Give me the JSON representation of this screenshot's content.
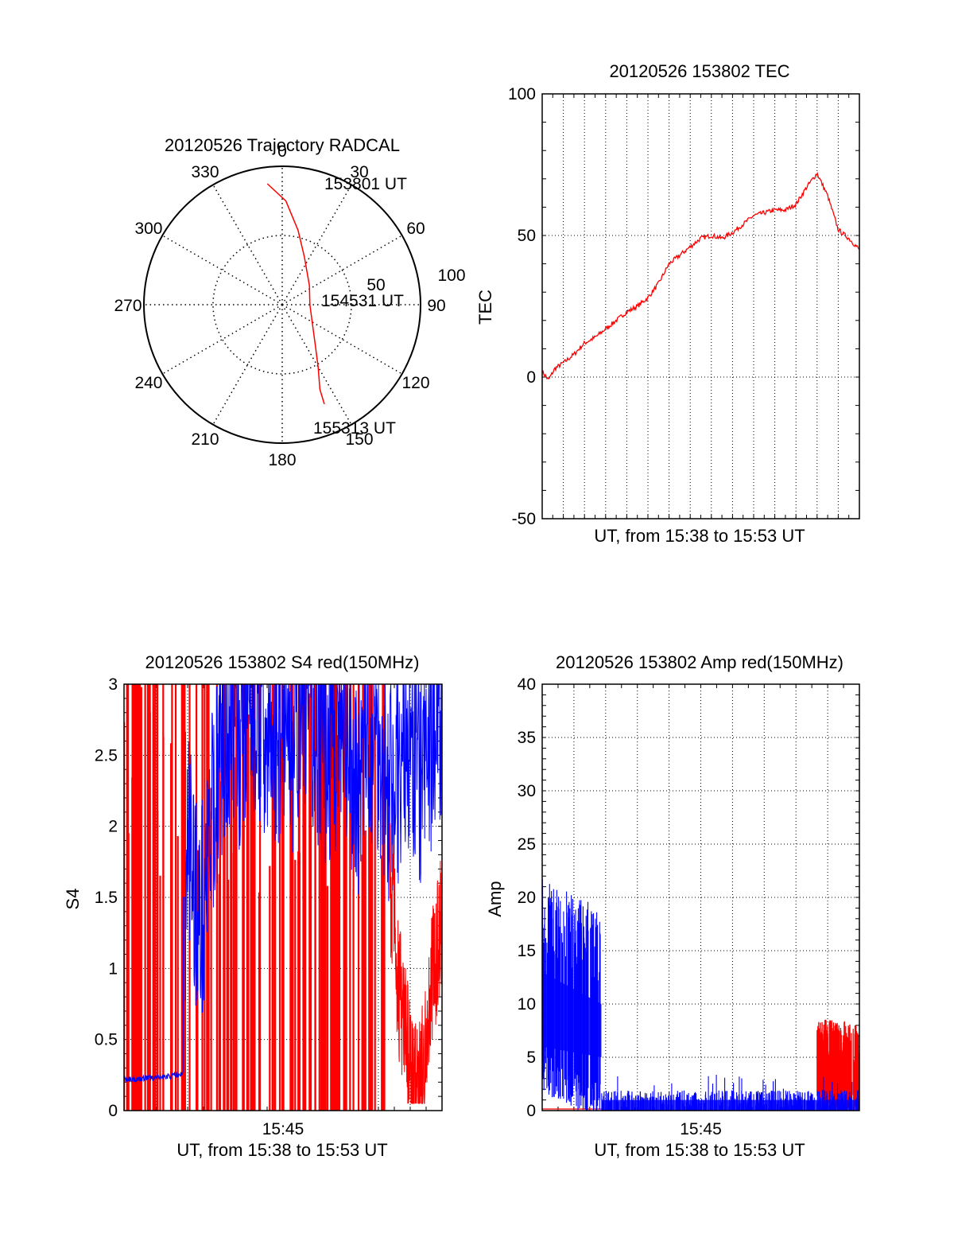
{
  "chart_data": [
    {
      "type": "polar",
      "title": "20120526 Trajectory RADCAL",
      "angle_labels": [
        "0",
        "30",
        "60",
        "90",
        "120",
        "150",
        "180",
        "210",
        "240",
        "270",
        "300",
        "330"
      ],
      "radius_labels": [
        "50",
        "100"
      ],
      "rlim": [
        0,
        100
      ],
      "grid": true,
      "series": [
        {
          "color": "#ff0000",
          "points": [
            {
              "azimuth": 353,
              "zenith": 88
            },
            {
              "azimuth": 2,
              "zenith": 75
            },
            {
              "azimuth": 12,
              "zenith": 55
            },
            {
              "azimuth": 25,
              "zenith": 38
            },
            {
              "azimuth": 55,
              "zenith": 24
            },
            {
              "azimuth": 90,
              "zenith": 20
            },
            {
              "azimuth": 120,
              "zenith": 25
            },
            {
              "azimuth": 140,
              "zenith": 37
            },
            {
              "azimuth": 150,
              "zenith": 52
            },
            {
              "azimuth": 156,
              "zenith": 67
            },
            {
              "azimuth": 157,
              "zenith": 78
            }
          ]
        }
      ],
      "annotations": [
        {
          "text": "153801 UT",
          "azimuth": 5,
          "zenith": 80
        },
        {
          "text": "154531 UT",
          "azimuth": 91,
          "zenith": 40
        },
        {
          "text": "155313 UT",
          "azimuth": 158,
          "zenith": 78
        }
      ]
    },
    {
      "type": "line",
      "title": "20120526 153802 TEC",
      "xlabel": "UT, from 15:38 to 15:53 UT",
      "ylabel": "TEC",
      "xlim": [
        0,
        15
      ],
      "ylim": [
        -50,
        100
      ],
      "yticks": [
        "100",
        "50",
        "0",
        "-50"
      ],
      "grid": true,
      "series": [
        {
          "color": "#ff0000",
          "x": [
            0,
            0.3,
            0.6,
            1.0,
            1.5,
            2.0,
            2.5,
            3.0,
            3.5,
            4.0,
            4.5,
            5.0,
            5.5,
            6.0,
            6.5,
            7.0,
            7.5,
            8.0,
            8.5,
            9.0,
            9.5,
            10.0,
            10.5,
            11.0,
            11.5,
            12.0,
            12.5,
            13.0,
            13.5,
            14.0,
            14.5,
            15.0
          ],
          "y": [
            2,
            -1,
            3,
            5,
            8,
            12,
            14,
            17,
            20,
            23,
            25,
            28,
            33,
            40,
            43,
            46,
            49,
            50,
            49,
            51,
            54,
            57,
            58,
            59,
            59,
            61,
            67,
            72,
            64,
            52,
            49,
            45
          ]
        }
      ]
    },
    {
      "type": "line",
      "title": "20120526 153802 S4 red(150MHz)",
      "xlabel": "UT, from 15:38 to 15:53 UT",
      "ylabel": "S4",
      "xlim": [
        0,
        15
      ],
      "ylim": [
        0,
        3
      ],
      "xticks": [
        "15:45"
      ],
      "yticks": [
        "0",
        "0.5",
        "1",
        "1.5",
        "2",
        "2.5",
        "3"
      ],
      "grid": true,
      "series": [
        {
          "color": "#0000ff",
          "x": [
            0,
            0.5,
            1.0,
            1.5,
            2.0,
            2.5,
            2.8,
            3.0,
            3.3,
            3.6,
            4.0,
            4.5,
            5.0,
            5.5,
            6.0,
            6.5,
            7.0,
            7.5,
            8.0,
            8.5,
            9.0,
            9.5,
            10.0,
            10.5,
            11.0,
            11.5,
            12.0,
            12.5,
            13.0,
            13.5,
            14.0,
            14.5,
            15.0
          ],
          "y": [
            0.22,
            0.22,
            0.23,
            0.23,
            0.24,
            0.25,
            0.26,
            2.0,
            1.6,
            1.3,
            1.8,
            2.5,
            2.8,
            2.6,
            2.9,
            2.7,
            2.5,
            2.8,
            2.6,
            2.9,
            2.7,
            2.5,
            2.6,
            2.4,
            2.3,
            2.5,
            2.6,
            2.2,
            2.4,
            2.6,
            2.3,
            2.6,
            2.8
          ]
        },
        {
          "color": "#ff0000",
          "x": [
            12.5,
            12.8,
            13.0,
            13.3,
            13.6,
            13.9,
            14.2,
            14.5,
            14.8,
            15.0
          ],
          "y": [
            1.7,
            1.2,
            0.8,
            0.5,
            0.2,
            0.1,
            0.4,
            0.9,
            1.2,
            1.4
          ]
        }
      ]
    },
    {
      "type": "line",
      "title": "20120526 153802 Amp red(150MHz)",
      "xlabel": "UT, from 15:38 to 15:53 UT",
      "ylabel": "Amp",
      "xlim": [
        0,
        15
      ],
      "ylim": [
        0,
        40
      ],
      "xticks": [
        "15:45"
      ],
      "yticks": [
        "0",
        "5",
        "10",
        "15",
        "20",
        "25",
        "30",
        "35",
        "40"
      ],
      "grid": true,
      "series": [
        {
          "color": "#0000ff",
          "x": [
            0,
            0.5,
            1.0,
            1.5,
            2.0,
            2.5,
            2.8,
            3.0,
            4.0,
            5.0,
            6.0,
            7.0,
            8.0,
            9.0,
            10.0,
            11.0,
            12.0,
            13.0,
            14.0,
            15.0
          ],
          "y": [
            12,
            11,
            11,
            10,
            10,
            9,
            9,
            1,
            0.8,
            0.8,
            0.9,
            0.8,
            0.8,
            0.8,
            0.8,
            0.9,
            0.8,
            0.8,
            0.9,
            0.8
          ]
        },
        {
          "color": "#ff0000",
          "x": [
            0,
            2.8,
            13.0,
            13.5,
            14.0,
            14.5,
            15.0
          ],
          "y": [
            0.1,
            0.1,
            5.5,
            6.0,
            5.8,
            5.5,
            5.0
          ]
        }
      ]
    }
  ]
}
